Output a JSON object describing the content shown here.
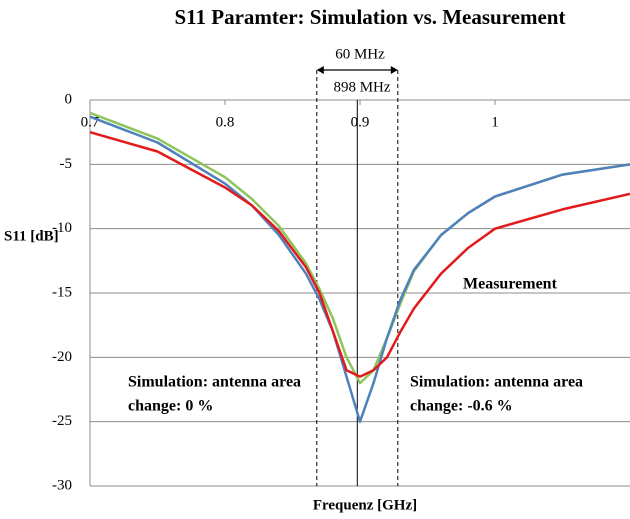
{
  "chart_data": {
    "type": "line",
    "title": "S11 Paramter: Simulation vs. Measurement",
    "x_label": "Frequenz [GHz]",
    "y_label": "S11 [dB]",
    "x": [
      0.7,
      0.75,
      0.8,
      0.82,
      0.84,
      0.86,
      0.87,
      0.88,
      0.89,
      0.9,
      0.91,
      0.92,
      0.93,
      0.94,
      0.96,
      0.98,
      1.0,
      1.05,
      1.1
    ],
    "series": [
      {
        "name": "Measurement",
        "color": "#e31a1c",
        "values": [
          -2.5,
          -4.0,
          -6.8,
          -8.2,
          -10.2,
          -13,
          -15,
          -18,
          -21,
          -21.5,
          -21,
          -20,
          -18,
          -16.2,
          -13.5,
          -11.5,
          -10,
          -8.5,
          -7.3
        ]
      },
      {
        "name": "Simulation: antenna area change: 0 %",
        "color": "#4f81bd",
        "values": [
          -1.3,
          -3.3,
          -6.5,
          -8.2,
          -10.5,
          -13.5,
          -15.5,
          -18,
          -21.5,
          -25,
          -22,
          -18.5,
          -15.5,
          -13.2,
          -10.5,
          -8.8,
          -7.5,
          -5.8,
          -5.0
        ]
      },
      {
        "name": "Simulation: antenna area change: -0.6 %",
        "color": "#8dc55a",
        "values": [
          -1.0,
          -3.0,
          -6.0,
          -7.7,
          -9.8,
          -12.7,
          -14.7,
          -17,
          -20,
          -22,
          -21,
          -18.5,
          -15.8,
          -13.3,
          -10.5,
          -8.8,
          -7.5,
          -5.8,
          -5.0
        ]
      }
    ],
    "annotations": [
      {
        "lines": [
          "Measurement"
        ],
        "color": "#e31a1c"
      },
      {
        "lines": [
          "Simulation: antenna area",
          "change: 0 %"
        ],
        "color": "#4f81bd"
      },
      {
        "lines": [
          "Simulation: antenna area",
          "change: -0.6 %"
        ],
        "color": "#8dc55a"
      }
    ],
    "vlines": [
      {
        "x": 0.868,
        "style": "dashed"
      },
      {
        "x": 0.898,
        "style": "solid"
      },
      {
        "x": 0.928,
        "style": "dashed"
      }
    ],
    "span_label": "60 MHz",
    "center_label": "898 MHz",
    "xlim": [
      0.7,
      1.1
    ],
    "xticks": [
      0.7,
      0.8,
      0.9,
      1
    ],
    "ylim": [
      -30,
      0
    ],
    "yticks": [
      0,
      -5,
      -10,
      -15,
      -20,
      -25,
      -30
    ],
    "grid": true
  }
}
